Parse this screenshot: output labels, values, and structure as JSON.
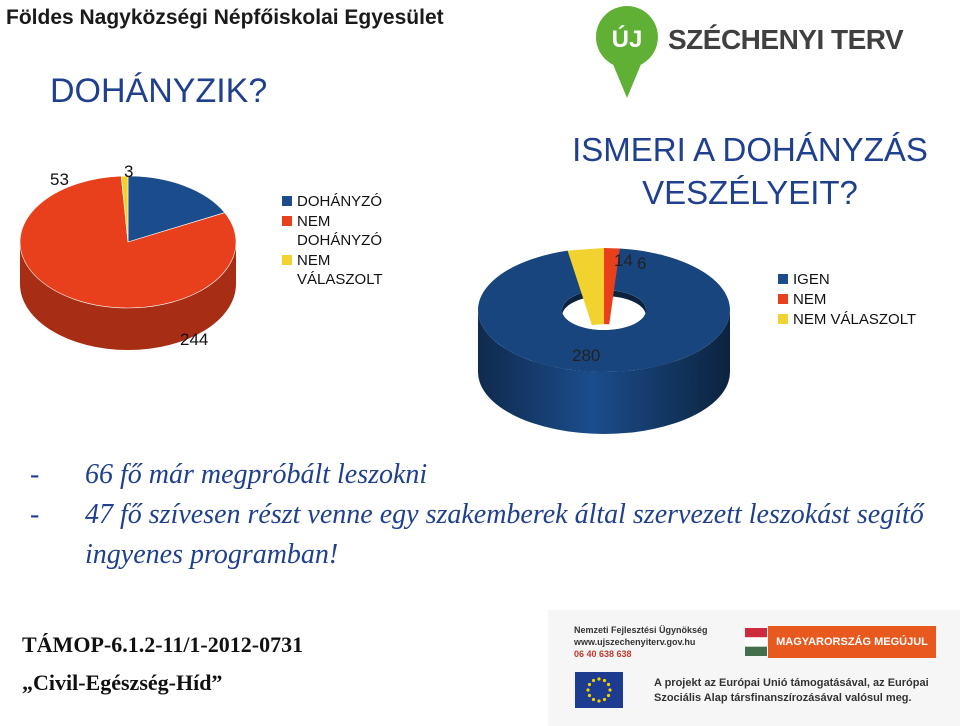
{
  "header": {
    "organization": "Földes Nagyközségi Népfőiskolai Egyesület"
  },
  "logo": {
    "badge": "ÚJ",
    "name": "SZÉCHENYI TERV",
    "badge_color": "#5fb035"
  },
  "colors": {
    "title": "#1f3f8f",
    "blue": "#1b4d8c",
    "red": "#e8401c",
    "yellow": "#f2d22e"
  },
  "chart_data": [
    {
      "type": "pie",
      "title": "DOHÁNYZIK?",
      "categories": [
        "DOHÁNYZÓ",
        "NEM DOHÁNYZÓ",
        "NEM VÁLASZOLT"
      ],
      "values": [
        53,
        244,
        3
      ],
      "data_labels": [
        "53",
        "244",
        "3"
      ],
      "legend": [
        "DOHÁNYZÓ",
        "NEM DOHÁNYZÓ",
        "NEM VÁLASZOLT"
      ],
      "legend_lines": [
        [
          "DOHÁNYZÓ"
        ],
        [
          "NEM",
          "DOHÁNYZÓ"
        ],
        [
          "NEM",
          "VÁLASZOLT"
        ]
      ],
      "legend_position": "right",
      "colors": [
        "#1b4d8c",
        "#e8401c",
        "#f2d22e"
      ]
    },
    {
      "type": "pie",
      "style": "3d-doughnut",
      "title": "ISMERI A DOHÁNYZÁS VESZÉLYEIT?",
      "categories": [
        "IGEN",
        "NEM",
        "NEM VÁLASZOLT"
      ],
      "values": [
        280,
        6,
        14
      ],
      "data_labels": [
        "280",
        "6",
        "14"
      ],
      "legend": [
        "IGEN",
        "NEM",
        "NEM VÁLASZOLT"
      ],
      "legend_position": "right",
      "colors": [
        "#1b4d8c",
        "#e8401c",
        "#f2d22e"
      ]
    }
  ],
  "body": {
    "bullets": [
      {
        "dash": "-",
        "text": "66 fő már megpróbált leszokni"
      },
      {
        "dash": "-",
        "text": "47 fő szívesen részt venne egy szakemberek által szervezett leszokást segítő ingyenes programban!"
      }
    ]
  },
  "project": {
    "code": "TÁMOP-6.1.2-11/1-2012-0731",
    "name": "„Civil-Egészség-Híd”"
  },
  "footer": {
    "agency": "Nemzeti Fejlesztési Ügynökség",
    "website": "www.ujszechenyiterv.gov.hu",
    "phone": "06 40 638 638",
    "slogan": "MAGYARORSZÁG MEGÚJUL",
    "eu_line1": "A projekt az Európai Unió támogatásával, az Európai",
    "eu_line2": "Szociális Alap társfinanszírozásával valósul meg."
  }
}
